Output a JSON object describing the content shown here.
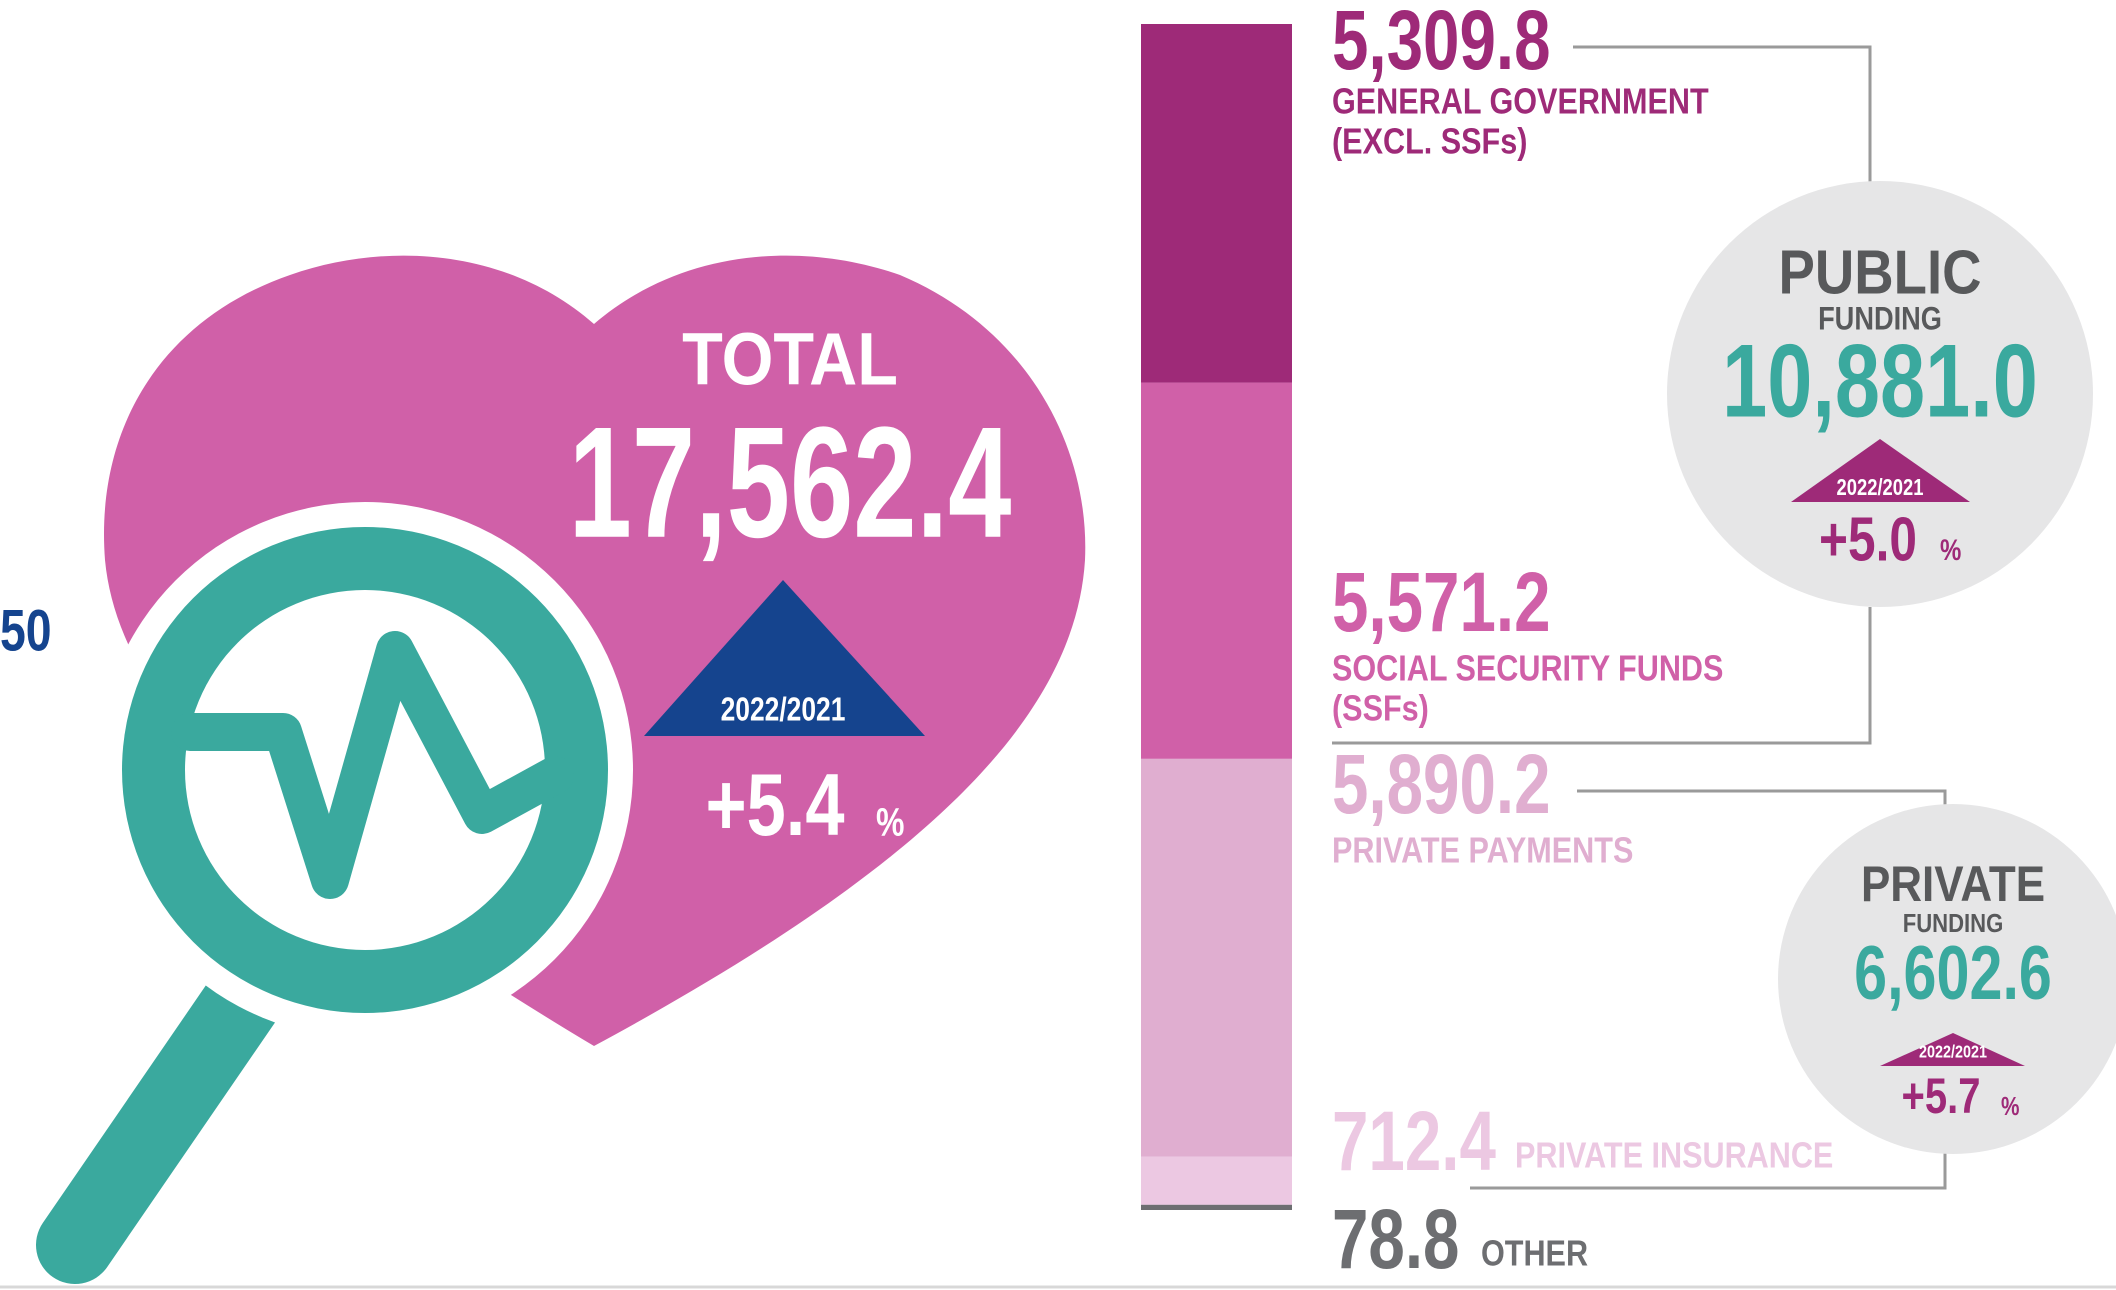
{
  "edge_label": "50",
  "total": {
    "title": "TOTAL",
    "value": "17,562.4",
    "period": "2022/2021",
    "change": "+5.4",
    "unit": "%"
  },
  "chart_data": {
    "type": "stacked-bar",
    "series": [
      {
        "label": [
          "GENERAL GOVERNMENT",
          "(EXCL. SSFs)"
        ],
        "color": "#9e2a78",
        "values": [
          5309.8
        ],
        "value_labels": [
          "5,309.8"
        ]
      },
      {
        "label": [
          "SOCIAL SECURITY FUNDS",
          "(SSFs)"
        ],
        "color": "#d060a8",
        "values": [
          5571.2
        ],
        "value_labels": [
          "5,571.2"
        ]
      },
      {
        "label": [
          "PRIVATE PAYMENTS"
        ],
        "color": "#e0aed0",
        "values": [
          5890.2
        ],
        "value_labels": [
          "5,890.2"
        ]
      },
      {
        "label": [
          "PRIVATE INSURANCE"
        ],
        "color": "#ecc8e2",
        "values": [
          712.4
        ],
        "value_labels": [
          "712.4"
        ]
      },
      {
        "label": [
          "OTHER"
        ],
        "color": "#6d6e71",
        "values": [
          78.8
        ],
        "value_labels": [
          "78.8"
        ]
      }
    ]
  },
  "groups": [
    {
      "title": "PUBLIC",
      "subtitle": "FUNDING",
      "value": "10,881.0",
      "period": "2022/2021",
      "change": "+5.0",
      "unit": "%"
    },
    {
      "title": "PRIVATE",
      "subtitle": "FUNDING",
      "value": "6,602.6",
      "period": "2022/2021",
      "change": "+5.7",
      "unit": "%"
    }
  ]
}
